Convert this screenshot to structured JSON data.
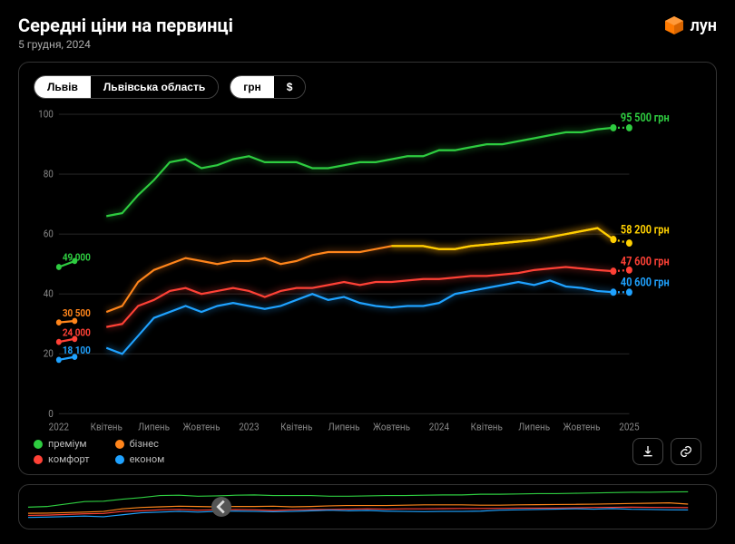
{
  "header": {
    "title": "Середні ціни на первинці",
    "date": "5 грудня, 2024",
    "logo_text": "лун"
  },
  "toggles": {
    "region": {
      "options": [
        "Львів",
        "Львівська область"
      ],
      "active_index": 0
    },
    "currency": {
      "options": [
        "грн",
        "$"
      ],
      "active_index": 0
    }
  },
  "chart": {
    "type": "line",
    "background_color": "#000000",
    "grid_color": "#222222",
    "axis_text_color": "#888888",
    "ylim": [
      0,
      100
    ],
    "yticks": [
      0,
      20,
      40,
      60,
      80,
      100
    ],
    "x_count": 37,
    "xticks": [
      {
        "i": 0,
        "label": "2022"
      },
      {
        "i": 3,
        "label": "Квітень"
      },
      {
        "i": 6,
        "label": "Липень"
      },
      {
        "i": 9,
        "label": "Жовтень"
      },
      {
        "i": 12,
        "label": "2023"
      },
      {
        "i": 15,
        "label": "Квітень"
      },
      {
        "i": 18,
        "label": "Липень"
      },
      {
        "i": 21,
        "label": "Жовтень"
      },
      {
        "i": 24,
        "label": "2024"
      },
      {
        "i": 27,
        "label": "Квітень"
      },
      {
        "i": 30,
        "label": "Липень"
      },
      {
        "i": 33,
        "label": "Жовтень"
      },
      {
        "i": 36,
        "label": "2025"
      }
    ],
    "series": [
      {
        "id": "premium",
        "label": "преміум",
        "color": "#2ecc40",
        "start_label": "49 000",
        "end_label": "95 500 грн",
        "start_pts": [
          [
            0,
            49
          ],
          [
            1,
            51
          ]
        ],
        "pts": [
          [
            3,
            66
          ],
          [
            4,
            67
          ],
          [
            5,
            73
          ],
          [
            6,
            78
          ],
          [
            7,
            84
          ],
          [
            8,
            85
          ],
          [
            9,
            82
          ],
          [
            10,
            83
          ],
          [
            11,
            85
          ],
          [
            12,
            86
          ],
          [
            13,
            84
          ],
          [
            14,
            84
          ],
          [
            15,
            84
          ],
          [
            16,
            82
          ],
          [
            17,
            82
          ],
          [
            18,
            83
          ],
          [
            19,
            84
          ],
          [
            20,
            84
          ],
          [
            21,
            85
          ],
          [
            22,
            86
          ],
          [
            23,
            86
          ],
          [
            24,
            88
          ],
          [
            25,
            88
          ],
          [
            26,
            89
          ],
          [
            27,
            90
          ],
          [
            28,
            90
          ],
          [
            29,
            91
          ],
          [
            30,
            92
          ],
          [
            31,
            93
          ],
          [
            32,
            94
          ],
          [
            33,
            94
          ],
          [
            34,
            95
          ],
          [
            35,
            95.5
          ]
        ],
        "proj": [
          [
            35,
            95.5
          ],
          [
            36,
            95.5
          ]
        ]
      },
      {
        "id": "business",
        "label": "бізнес",
        "color": "#ff851b",
        "start_label": "30 500",
        "end_label": "",
        "start_pts": [
          [
            0,
            30.5
          ],
          [
            1,
            31
          ]
        ],
        "pts": [
          [
            3,
            34
          ],
          [
            4,
            36
          ],
          [
            5,
            44
          ],
          [
            6,
            48
          ],
          [
            7,
            50
          ],
          [
            8,
            52
          ],
          [
            9,
            51
          ],
          [
            10,
            50
          ],
          [
            11,
            51
          ],
          [
            12,
            51
          ],
          [
            13,
            52
          ],
          [
            14,
            50
          ],
          [
            15,
            51
          ],
          [
            16,
            53
          ],
          [
            17,
            54
          ],
          [
            18,
            54
          ],
          [
            19,
            54
          ],
          [
            20,
            55
          ],
          [
            21,
            56
          ],
          [
            22,
            56
          ],
          [
            23,
            56
          ],
          [
            24,
            55
          ],
          [
            25,
            55
          ],
          [
            26,
            56
          ],
          [
            27,
            56.5
          ],
          [
            28,
            57
          ],
          [
            29,
            57.5
          ],
          [
            30,
            58
          ],
          [
            31,
            59
          ],
          [
            32,
            60
          ],
          [
            33,
            61
          ],
          [
            34,
            62
          ],
          [
            35,
            58.2
          ]
        ],
        "proj": []
      },
      {
        "id": "yellow_end",
        "label": "",
        "color": "#ffd000",
        "start_label": "",
        "end_label": "58 200 грн",
        "start_pts": [],
        "pts": [
          [
            21,
            56
          ],
          [
            22,
            56
          ],
          [
            23,
            56
          ],
          [
            24,
            55
          ],
          [
            25,
            55
          ],
          [
            26,
            56
          ],
          [
            27,
            56.5
          ],
          [
            28,
            57
          ],
          [
            29,
            57.5
          ],
          [
            30,
            58
          ],
          [
            31,
            59
          ],
          [
            32,
            60
          ],
          [
            33,
            61
          ],
          [
            34,
            62
          ],
          [
            35,
            58.2
          ]
        ],
        "proj": [
          [
            35,
            58.2
          ],
          [
            36,
            57
          ]
        ]
      },
      {
        "id": "comfort",
        "label": "комфорт",
        "color": "#ff4136",
        "start_label": "24 000",
        "end_label": "47 600 грн",
        "start_pts": [
          [
            0,
            24
          ],
          [
            1,
            25
          ]
        ],
        "pts": [
          [
            3,
            29
          ],
          [
            4,
            30
          ],
          [
            5,
            36
          ],
          [
            6,
            38
          ],
          [
            7,
            41
          ],
          [
            8,
            42
          ],
          [
            9,
            40
          ],
          [
            10,
            41
          ],
          [
            11,
            42
          ],
          [
            12,
            41
          ],
          [
            13,
            39
          ],
          [
            14,
            41
          ],
          [
            15,
            42
          ],
          [
            16,
            42
          ],
          [
            17,
            43
          ],
          [
            18,
            44
          ],
          [
            19,
            43
          ],
          [
            20,
            44
          ],
          [
            21,
            44
          ],
          [
            22,
            44.5
          ],
          [
            23,
            45
          ],
          [
            24,
            45
          ],
          [
            25,
            45.5
          ],
          [
            26,
            46
          ],
          [
            27,
            46
          ],
          [
            28,
            46.5
          ],
          [
            29,
            47
          ],
          [
            30,
            48
          ],
          [
            31,
            48.5
          ],
          [
            32,
            49
          ],
          [
            33,
            48.5
          ],
          [
            34,
            48
          ],
          [
            35,
            47.6
          ]
        ],
        "proj": [
          [
            35,
            47.6
          ],
          [
            36,
            48
          ]
        ]
      },
      {
        "id": "econom",
        "label": "економ",
        "color": "#1fa2ff",
        "start_label": "18 100",
        "end_label": "40 600 грн",
        "start_pts": [
          [
            0,
            18
          ],
          [
            1,
            19
          ]
        ],
        "pts": [
          [
            3,
            22
          ],
          [
            4,
            20
          ],
          [
            5,
            26
          ],
          [
            6,
            32
          ],
          [
            7,
            34
          ],
          [
            8,
            36
          ],
          [
            9,
            34
          ],
          [
            10,
            36
          ],
          [
            11,
            37
          ],
          [
            12,
            36
          ],
          [
            13,
            35
          ],
          [
            14,
            36
          ],
          [
            15,
            38
          ],
          [
            16,
            40
          ],
          [
            17,
            38
          ],
          [
            18,
            39
          ],
          [
            19,
            37
          ],
          [
            20,
            36
          ],
          [
            21,
            35.5
          ],
          [
            22,
            36
          ],
          [
            23,
            36
          ],
          [
            24,
            37
          ],
          [
            25,
            40
          ],
          [
            26,
            41
          ],
          [
            27,
            42
          ],
          [
            28,
            43
          ],
          [
            29,
            44
          ],
          [
            30,
            43
          ],
          [
            31,
            44.5
          ],
          [
            32,
            42.5
          ],
          [
            33,
            42
          ],
          [
            34,
            41
          ],
          [
            35,
            40.6
          ]
        ],
        "proj": [
          [
            35,
            40.6
          ],
          [
            36,
            40.6
          ]
        ]
      }
    ]
  },
  "legend": {
    "items": [
      {
        "id": "premium",
        "label": "преміум",
        "color": "#2ecc40"
      },
      {
        "id": "business",
        "label": "бізнес",
        "color": "#ff851b"
      },
      {
        "id": "comfort",
        "label": "комфорт",
        "color": "#ff4136"
      },
      {
        "id": "econom",
        "label": "економ",
        "color": "#1fa2ff"
      }
    ]
  },
  "actions": {
    "download": "download-icon",
    "share": "link-icon"
  },
  "minimap": {
    "handle_position_pct": 29
  }
}
